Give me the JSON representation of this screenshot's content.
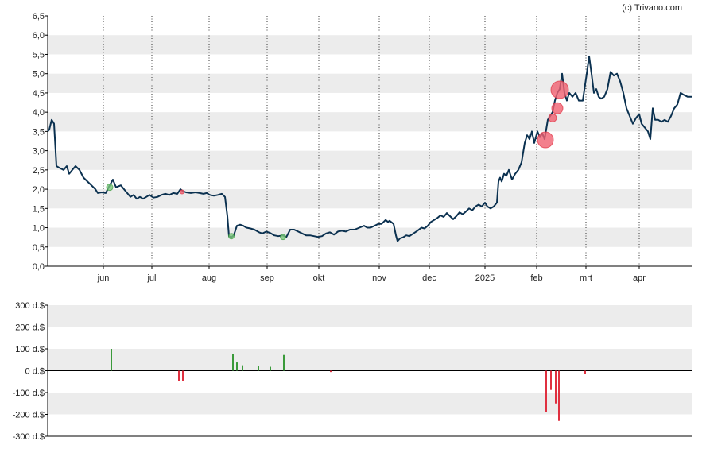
{
  "credit": "(c) Trivano.com",
  "colors": {
    "price_line": "#0b3150",
    "band": "#ececec",
    "grid": "#333333",
    "buy": "#3a9a3a",
    "sell": "#e03040",
    "buy_marker": "#7cc87c",
    "sell_marker": "#f06070"
  },
  "chart_data": [
    {
      "type": "line",
      "title": "",
      "xlabel": "",
      "ylabel": "",
      "ylim": [
        0,
        6.5
      ],
      "y_ticks": [
        "0,0",
        "0,5",
        "1,0",
        "1,5",
        "2,0",
        "2,5",
        "3,0",
        "3,5",
        "4,0",
        "4,5",
        "5,0",
        "5,5",
        "6,0",
        "6,5"
      ],
      "x_ticks": [
        {
          "label": "jun",
          "t": 70
        },
        {
          "label": "jul",
          "t": 131
        },
        {
          "label": "aug",
          "t": 203
        },
        {
          "label": "sep",
          "t": 276
        },
        {
          "label": "okt",
          "t": 341
        },
        {
          "label": "nov",
          "t": 417
        },
        {
          "label": "dec",
          "t": 480
        },
        {
          "label": "2025",
          "t": 550
        },
        {
          "label": "feb",
          "t": 615
        },
        {
          "label": "mrt",
          "t": 677
        },
        {
          "label": "apr",
          "t": 744
        }
      ],
      "t_range": [
        0,
        810
      ],
      "grid": true,
      "series": [
        {
          "points": [
            [
              0,
              3.5
            ],
            [
              2,
              3.55
            ],
            [
              5,
              3.8
            ],
            [
              8,
              3.7
            ],
            [
              11,
              2.6
            ],
            [
              15,
              2.55
            ],
            [
              20,
              2.5
            ],
            [
              24,
              2.6
            ],
            [
              27,
              2.4
            ],
            [
              31,
              2.5
            ],
            [
              35,
              2.6
            ],
            [
              40,
              2.5
            ],
            [
              45,
              2.3
            ],
            [
              50,
              2.2
            ],
            [
              55,
              2.1
            ],
            [
              60,
              2.0
            ],
            [
              63,
              1.9
            ],
            [
              68,
              1.92
            ],
            [
              73,
              1.9
            ],
            [
              78,
              2.1
            ],
            [
              82,
              2.25
            ],
            [
              86,
              2.05
            ],
            [
              92,
              2.1
            ],
            [
              96,
              2.0
            ],
            [
              100,
              1.9
            ],
            [
              104,
              1.8
            ],
            [
              108,
              1.85
            ],
            [
              112,
              1.75
            ],
            [
              116,
              1.8
            ],
            [
              120,
              1.75
            ],
            [
              124,
              1.8
            ],
            [
              128,
              1.85
            ],
            [
              133,
              1.78
            ],
            [
              138,
              1.8
            ],
            [
              143,
              1.85
            ],
            [
              148,
              1.88
            ],
            [
              153,
              1.85
            ],
            [
              158,
              1.9
            ],
            [
              163,
              1.88
            ],
            [
              167,
              2.0
            ],
            [
              170,
              1.95
            ],
            [
              174,
              1.92
            ],
            [
              180,
              1.9
            ],
            [
              186,
              1.92
            ],
            [
              191,
              1.9
            ],
            [
              196,
              1.88
            ],
            [
              200,
              1.9
            ],
            [
              204,
              1.85
            ],
            [
              209,
              1.83
            ],
            [
              214,
              1.85
            ],
            [
              219,
              1.88
            ],
            [
              223,
              1.8
            ],
            [
              226,
              1.3
            ],
            [
              228,
              0.78
            ],
            [
              231,
              0.75
            ],
            [
              234,
              0.8
            ],
            [
              238,
              1.05
            ],
            [
              242,
              1.08
            ],
            [
              246,
              1.05
            ],
            [
              250,
              1.0
            ],
            [
              255,
              0.98
            ],
            [
              260,
              0.95
            ],
            [
              266,
              0.88
            ],
            [
              270,
              0.85
            ],
            [
              275,
              0.9
            ],
            [
              280,
              0.86
            ],
            [
              285,
              0.8
            ],
            [
              290,
              0.78
            ],
            [
              296,
              0.8
            ],
            [
              300,
              0.75
            ],
            [
              305,
              0.95
            ],
            [
              310,
              0.95
            ],
            [
              315,
              0.9
            ],
            [
              320,
              0.85
            ],
            [
              325,
              0.8
            ],
            [
              330,
              0.8
            ],
            [
              335,
              0.78
            ],
            [
              340,
              0.76
            ],
            [
              345,
              0.78
            ],
            [
              350,
              0.85
            ],
            [
              355,
              0.88
            ],
            [
              360,
              0.82
            ],
            [
              365,
              0.9
            ],
            [
              370,
              0.92
            ],
            [
              375,
              0.9
            ],
            [
              380,
              0.95
            ],
            [
              386,
              0.95
            ],
            [
              392,
              1.0
            ],
            [
              398,
              1.05
            ],
            [
              402,
              1.0
            ],
            [
              406,
              1.0
            ],
            [
              411,
              1.05
            ],
            [
              416,
              1.1
            ],
            [
              420,
              1.1
            ],
            [
              425,
              1.2
            ],
            [
              428,
              1.15
            ],
            [
              430,
              1.18
            ],
            [
              435,
              1.1
            ],
            [
              438,
              0.8
            ],
            [
              440,
              0.65
            ],
            [
              443,
              0.72
            ],
            [
              447,
              0.75
            ],
            [
              451,
              0.8
            ],
            [
              455,
              0.78
            ],
            [
              460,
              0.85
            ],
            [
              465,
              0.92
            ],
            [
              470,
              1.0
            ],
            [
              474,
              0.98
            ],
            [
              478,
              1.05
            ],
            [
              482,
              1.15
            ],
            [
              486,
              1.2
            ],
            [
              490,
              1.25
            ],
            [
              494,
              1.32
            ],
            [
              498,
              1.28
            ],
            [
              502,
              1.38
            ],
            [
              506,
              1.3
            ],
            [
              510,
              1.22
            ],
            [
              514,
              1.3
            ],
            [
              518,
              1.4
            ],
            [
              522,
              1.35
            ],
            [
              526,
              1.42
            ],
            [
              530,
              1.5
            ],
            [
              534,
              1.45
            ],
            [
              538,
              1.55
            ],
            [
              542,
              1.6
            ],
            [
              546,
              1.55
            ],
            [
              550,
              1.65
            ],
            [
              553,
              1.55
            ],
            [
              557,
              1.5
            ],
            [
              561,
              1.55
            ],
            [
              565,
              1.65
            ],
            [
              567,
              2.2
            ],
            [
              569,
              2.3
            ],
            [
              571,
              2.2
            ],
            [
              574,
              2.4
            ],
            [
              577,
              2.35
            ],
            [
              580,
              2.5
            ],
            [
              584,
              2.25
            ],
            [
              588,
              2.4
            ],
            [
              592,
              2.5
            ],
            [
              596,
              2.7
            ],
            [
              600,
              3.2
            ],
            [
              603,
              3.4
            ],
            [
              606,
              3.3
            ],
            [
              609,
              3.5
            ],
            [
              612,
              3.2
            ],
            [
              616,
              3.5
            ],
            [
              619,
              3.35
            ],
            [
              622,
              3.45
            ],
            [
              625,
              3.3
            ],
            [
              629,
              3.8
            ],
            [
              632,
              3.9
            ],
            [
              635,
              4.0
            ],
            [
              638,
              4.3
            ],
            [
              641,
              4.5
            ],
            [
              644,
              4.6
            ],
            [
              647,
              5.0
            ],
            [
              650,
              4.5
            ],
            [
              653,
              4.3
            ],
            [
              656,
              4.5
            ],
            [
              660,
              4.4
            ],
            [
              664,
              4.5
            ],
            [
              668,
              4.3
            ],
            [
              673,
              4.3
            ],
            [
              678,
              5.0
            ],
            [
              681,
              5.45
            ],
            [
              684,
              5.0
            ],
            [
              687,
              4.5
            ],
            [
              690,
              4.6
            ],
            [
              693,
              4.4
            ],
            [
              696,
              4.35
            ],
            [
              700,
              4.4
            ],
            [
              704,
              4.6
            ],
            [
              708,
              5.05
            ],
            [
              712,
              4.95
            ],
            [
              716,
              5.0
            ],
            [
              720,
              4.8
            ],
            [
              724,
              4.5
            ],
            [
              728,
              4.1
            ],
            [
              732,
              3.9
            ],
            [
              736,
              3.7
            ],
            [
              740,
              3.85
            ],
            [
              744,
              3.95
            ],
            [
              747,
              3.7
            ],
            [
              751,
              3.6
            ],
            [
              755,
              3.5
            ],
            [
              758,
              3.3
            ],
            [
              761,
              4.1
            ],
            [
              764,
              3.8
            ],
            [
              768,
              3.8
            ],
            [
              772,
              3.75
            ],
            [
              776,
              3.8
            ],
            [
              780,
              3.75
            ],
            [
              784,
              3.9
            ],
            [
              788,
              4.1
            ],
            [
              792,
              4.2
            ],
            [
              796,
              4.5
            ],
            [
              800,
              4.45
            ],
            [
              805,
              4.4
            ],
            [
              810,
              4.4
            ]
          ]
        }
      ],
      "markers": [
        {
          "type": "buy",
          "t": 78,
          "y": 2.05,
          "size": 4
        },
        {
          "type": "sell",
          "t": 169,
          "y": 1.93,
          "size": 2.5
        },
        {
          "type": "buy",
          "t": 231,
          "y": 0.78,
          "size": 3.5
        },
        {
          "type": "buy",
          "t": 296,
          "y": 0.76,
          "size": 3.5
        },
        {
          "type": "sell",
          "t": 626,
          "y": 3.28,
          "size": 10
        },
        {
          "type": "sell",
          "t": 635,
          "y": 3.85,
          "size": 5
        },
        {
          "type": "sell",
          "t": 641,
          "y": 4.1,
          "size": 7
        },
        {
          "type": "sell",
          "t": 644,
          "y": 4.58,
          "size": 11
        }
      ]
    },
    {
      "type": "bar",
      "title": "",
      "xlabel": "",
      "ylabel": "",
      "ylim": [
        -300,
        300
      ],
      "y_ticks": [
        "300 d.$",
        "200 d.$",
        "100 d.$",
        "0 d.$",
        "-100 d.$",
        "-200 d.$",
        "-300 d.$"
      ],
      "bars": [
        {
          "t": 80,
          "value": 100
        },
        {
          "t": 165,
          "value": -48
        },
        {
          "t": 170,
          "value": -48
        },
        {
          "t": 233,
          "value": 75
        },
        {
          "t": 238,
          "value": 38
        },
        {
          "t": 245,
          "value": 25
        },
        {
          "t": 265,
          "value": 22
        },
        {
          "t": 280,
          "value": 18
        },
        {
          "t": 297,
          "value": 72
        },
        {
          "t": 356,
          "value": -6
        },
        {
          "t": 627,
          "value": -190
        },
        {
          "t": 633,
          "value": -88
        },
        {
          "t": 639,
          "value": -150
        },
        {
          "t": 643,
          "value": -230
        },
        {
          "t": 676,
          "value": -15
        }
      ]
    }
  ]
}
